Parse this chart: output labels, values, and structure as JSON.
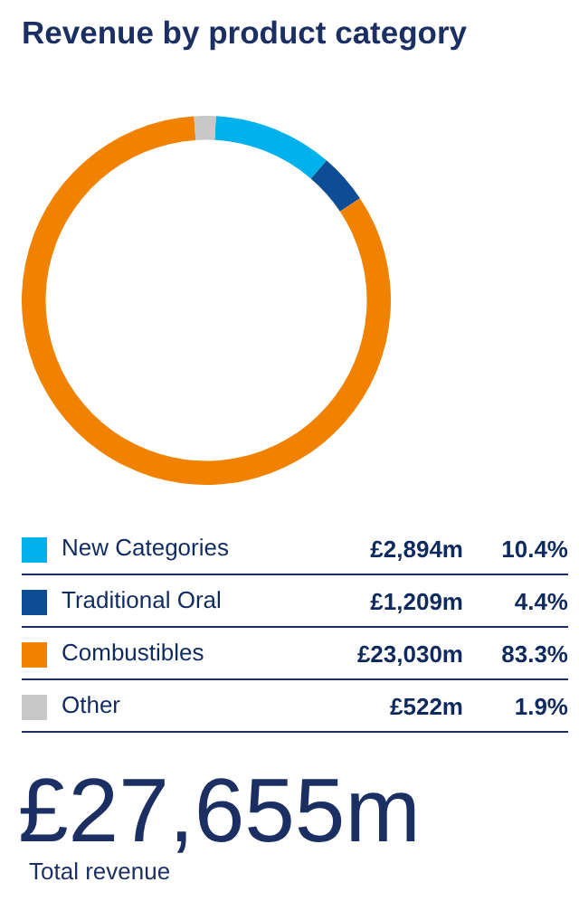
{
  "chart_data": {
    "type": "donut",
    "title": "Revenue by product category",
    "categories": [
      "New Categories",
      "Traditional Oral",
      "Combustibles",
      "Other"
    ],
    "values": [
      2894,
      1209,
      23030,
      522
    ],
    "colors": [
      "#00b1eb",
      "#0e4c96",
      "#f08200",
      "#c8c8c8"
    ],
    "value_labels": [
      "£2,894m",
      "£1,209m",
      "£23,030m",
      "£522m"
    ],
    "annotations": [
      {
        "text": "10.4%",
        "x": "New Categories"
      },
      {
        "text": "4.4%",
        "x": "Traditional Oral"
      },
      {
        "text": "83.3%",
        "x": "Combustibles"
      },
      {
        "text": "1.9%",
        "x": "Other"
      },
      "£27,655m",
      "Total revenue"
    ],
    "legend": "bottom"
  }
}
